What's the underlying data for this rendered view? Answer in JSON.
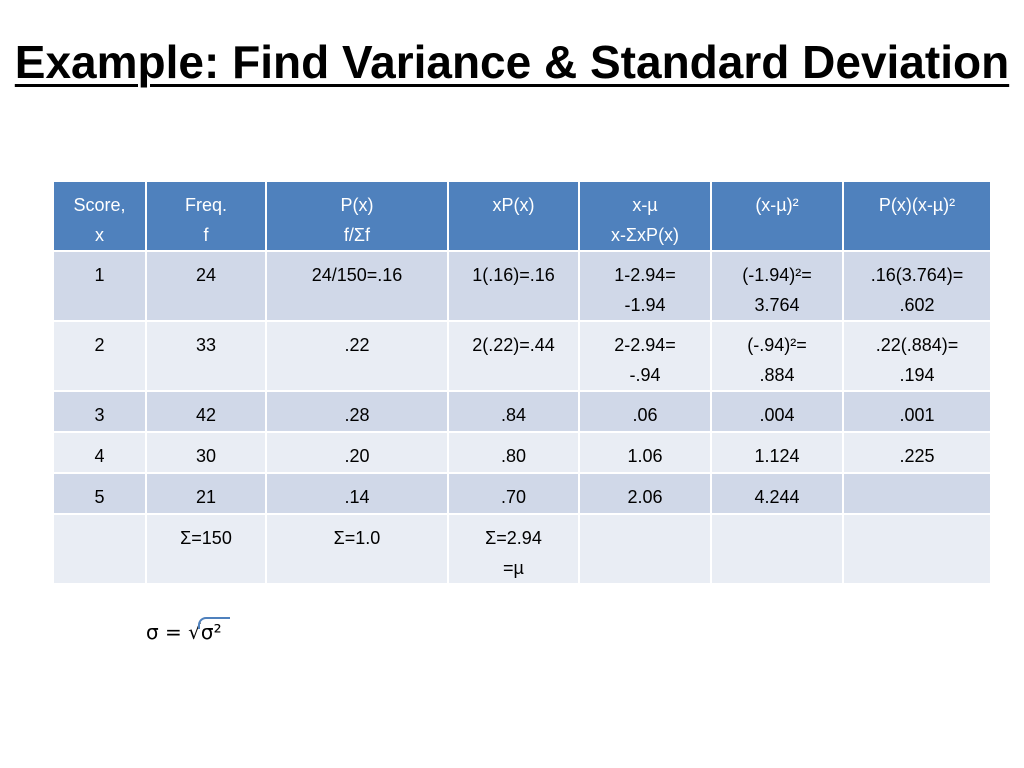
{
  "title": "Example: Find Variance & Standard Deviation",
  "table": {
    "headers": [
      [
        "Score,",
        "x"
      ],
      [
        "Freq.",
        "f"
      ],
      [
        "P(x)",
        "f/Σf"
      ],
      [
        "xP(x)"
      ],
      [
        "x-µ",
        "x-ΣxP(x)"
      ],
      [
        "(x-µ)²"
      ],
      [
        "P(x)(x-µ)²"
      ]
    ],
    "rows": [
      [
        [
          "1"
        ],
        [
          "24"
        ],
        [
          "24/150=.16"
        ],
        [
          "1(.16)=.16"
        ],
        [
          "1-2.94=",
          "-1.94"
        ],
        [
          "(-1.94)²=",
          "3.764"
        ],
        [
          ".16(3.764)=",
          ".602"
        ]
      ],
      [
        [
          "2"
        ],
        [
          "33"
        ],
        [
          ".22"
        ],
        [
          "2(.22)=.44"
        ],
        [
          "2-2.94=",
          "-.94"
        ],
        [
          "(-.94)²=",
          ".884"
        ],
        [
          ".22(.884)=",
          ".194"
        ]
      ],
      [
        [
          "3"
        ],
        [
          "42"
        ],
        [
          ".28"
        ],
        [
          ".84"
        ],
        [
          ".06"
        ],
        [
          ".004"
        ],
        [
          ".001"
        ]
      ],
      [
        [
          "4"
        ],
        [
          "30"
        ],
        [
          ".20"
        ],
        [
          ".80"
        ],
        [
          "1.06"
        ],
        [
          "1.124"
        ],
        [
          ".225"
        ]
      ],
      [
        [
          "5"
        ],
        [
          "21"
        ],
        [
          ".14"
        ],
        [
          ".70"
        ],
        [
          "2.06"
        ],
        [
          "4.244"
        ],
        [
          ""
        ]
      ],
      [
        [
          ""
        ],
        [
          "Σ=150"
        ],
        [
          "Σ=1.0"
        ],
        [
          "Σ=2.94",
          "=µ"
        ],
        [
          ""
        ],
        [
          ""
        ],
        [
          ""
        ]
      ]
    ]
  },
  "formula": {
    "lhs": "σ = ",
    "radical": "√",
    "radicand": "σ²"
  },
  "colors": {
    "header_bg": "#4f81bd",
    "row_odd": "#d0d8e8",
    "row_even": "#e9edf4"
  }
}
